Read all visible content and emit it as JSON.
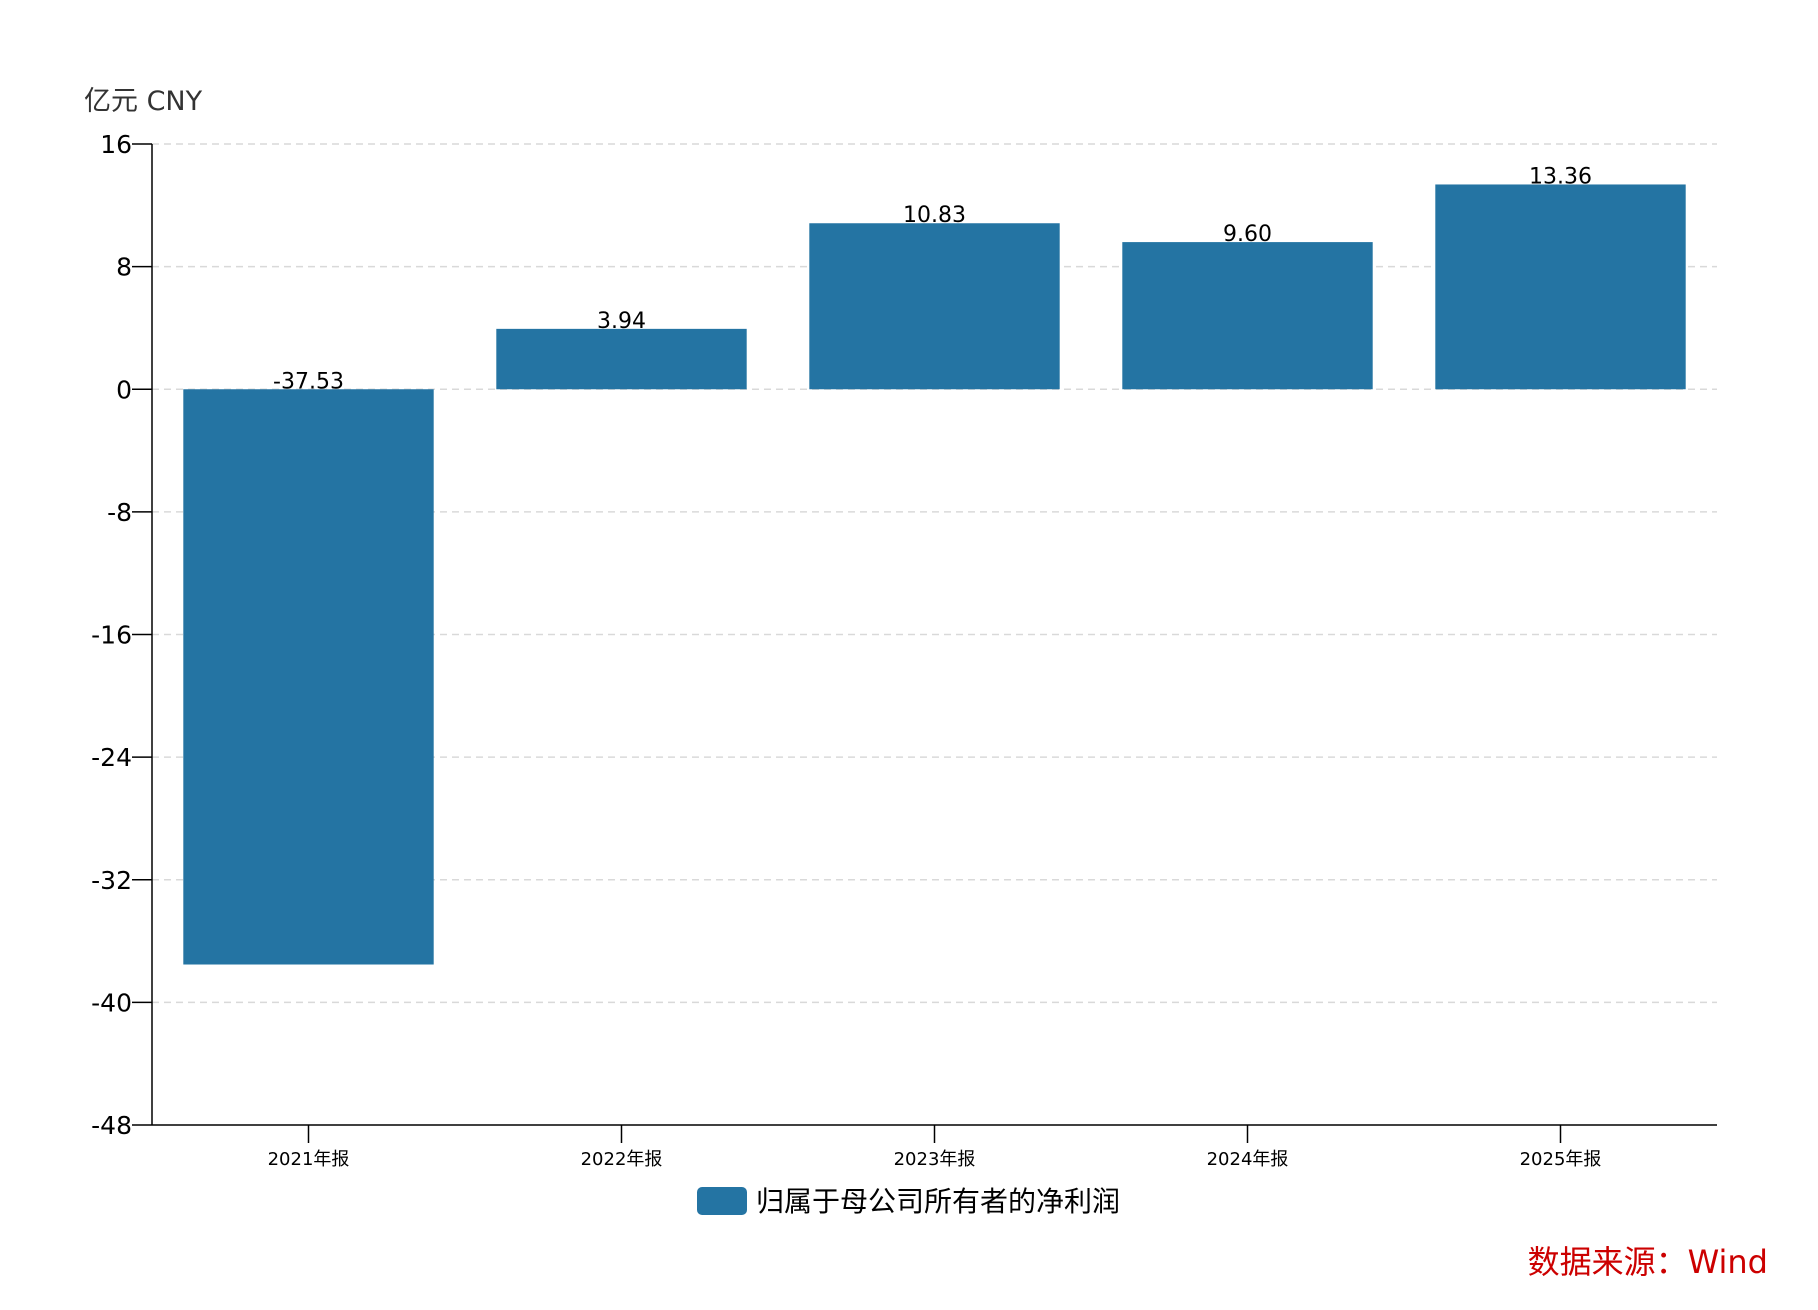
{
  "chart_data": {
    "type": "bar",
    "unit_label": "亿元  CNY",
    "categories": [
      "2021年报",
      "2022年报",
      "2023年报",
      "2024年报",
      "2025年报"
    ],
    "series": [
      {
        "name": "归属于母公司所有者的净利润",
        "values": [
          -37.53,
          3.94,
          10.83,
          9.6,
          13.36
        ],
        "value_labels": [
          "-37.53",
          "3.94",
          "10.83",
          "9.60",
          "13.36"
        ],
        "color": "#2474a3"
      }
    ],
    "ylim": [
      -48,
      16
    ],
    "yticks": [
      16,
      8,
      0,
      -8,
      -16,
      -24,
      -32,
      -40,
      -48
    ],
    "grid": true,
    "legend_position": "bottom-center"
  },
  "source": {
    "text": "数据来源：Wind",
    "color": "#cc0000"
  }
}
